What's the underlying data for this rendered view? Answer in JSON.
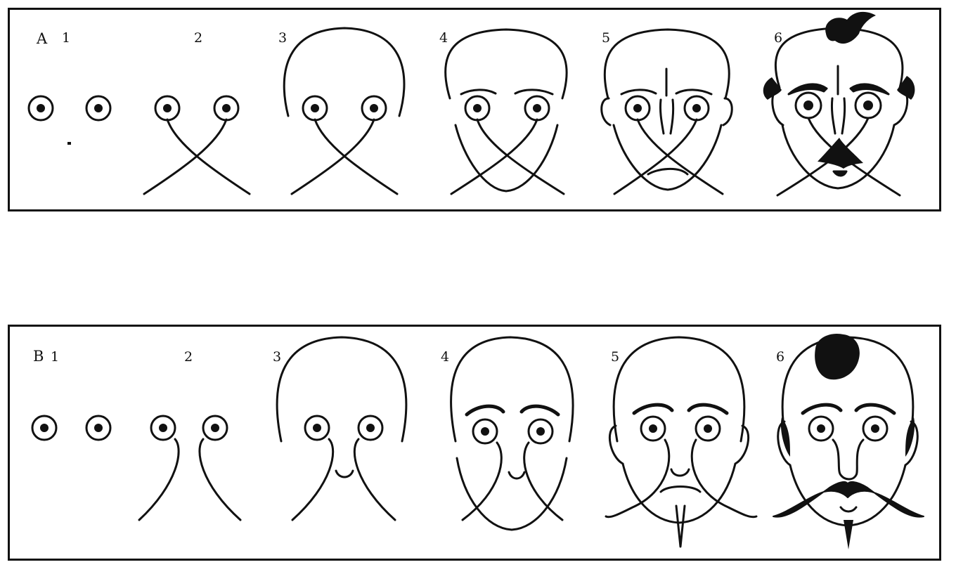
{
  "rows": [
    {
      "letter": "A",
      "steps": [
        "1",
        "2",
        "3",
        "4",
        "5",
        "6"
      ]
    },
    {
      "letter": "B",
      "steps": [
        "1",
        "2",
        "3",
        "4",
        "5",
        "6"
      ]
    }
  ],
  "colors": {
    "ink": "#111111",
    "paper": "#ffffff"
  }
}
